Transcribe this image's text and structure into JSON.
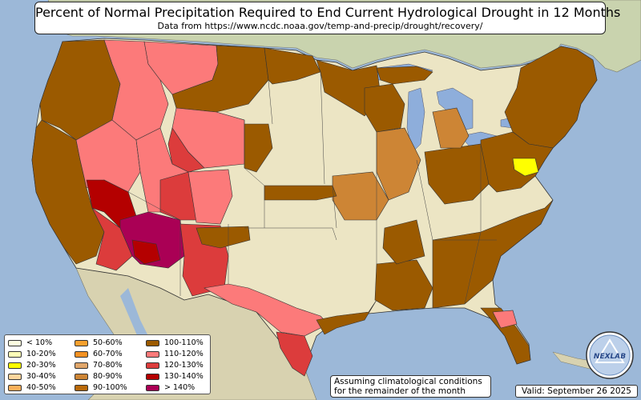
{
  "title": "Percent of Normal Precipitation Required to End Current Hydrological Drought in 12 Months",
  "subtitle": "Data from https://www.ncdc.noaa.gov/temp-and-precip/drought/recovery/",
  "note": "Assuming climatological conditions\nfor the remainder of the month",
  "valid": "Valid: September 26 2025",
  "logo_text": "NEXLAB",
  "colors": {
    "ocean": "#9cb8d8",
    "land": "#ece5c4",
    "mexico": "#d8d2b0",
    "canada": "#c9d3ae",
    "lakes": "#8eaedb"
  },
  "legend": [
    {
      "label": "< 10%",
      "color": "#fefee0"
    },
    {
      "label": "10-20%",
      "color": "#ffffb8"
    },
    {
      "label": "20-30%",
      "color": "#ffff00"
    },
    {
      "label": "30-40%",
      "color": "#fdd59c"
    },
    {
      "label": "40-50%",
      "color": "#fbb05a"
    },
    {
      "label": "50-60%",
      "color": "#f7a02e"
    },
    {
      "label": "60-70%",
      "color": "#f39122"
    },
    {
      "label": "70-80%",
      "color": "#e0a66a"
    },
    {
      "label": "80-90%",
      "color": "#cd8535"
    },
    {
      "label": "90-100%",
      "color": "#b8690a"
    },
    {
      "label": "100-110%",
      "color": "#9b5a00"
    },
    {
      "label": "110-120%",
      "color": "#fc7a7a"
    },
    {
      "label": "120-130%",
      "color": "#dc3c3c"
    },
    {
      "label": "130-140%",
      "color": "#b40000"
    },
    {
      "label": "> 140%",
      "color": "#aa0055"
    }
  ],
  "regions": [
    {
      "id": "pacific-northwest",
      "category": "100-110%"
    },
    {
      "id": "california",
      "category": "100-110%"
    },
    {
      "id": "idaho-montana-west",
      "category": "110-120%"
    },
    {
      "id": "montana-north",
      "category": "110-120%"
    },
    {
      "id": "montana-east",
      "category": "100-110%"
    },
    {
      "id": "north-dakota-north",
      "category": "100-110%"
    },
    {
      "id": "minnesota",
      "category": "100-110%"
    },
    {
      "id": "wyoming",
      "category": "110-120%"
    },
    {
      "id": "wyoming-west",
      "category": "120-130%"
    },
    {
      "id": "nevada-west",
      "category": "110-120%"
    },
    {
      "id": "southern-nevada",
      "category": "130-140%"
    },
    {
      "id": "arizona-west",
      "category": "120-130%"
    },
    {
      "id": "arizona-east",
      "category": "> 140%"
    },
    {
      "id": "arizona-south",
      "category": "130-140%"
    },
    {
      "id": "utah",
      "category": "110-120%"
    },
    {
      "id": "colorado-west",
      "category": "120-130%"
    },
    {
      "id": "colorado-east",
      "category": "110-120%"
    },
    {
      "id": "new-mexico",
      "category": "120-130%"
    },
    {
      "id": "west-texas",
      "category": "110-120%"
    },
    {
      "id": "texas-south",
      "category": "120-130%"
    },
    {
      "id": "texas-gulf",
      "category": "100-110%"
    },
    {
      "id": "louisiana-mississippi",
      "category": "100-110%"
    },
    {
      "id": "southeast",
      "category": "100-110%"
    },
    {
      "id": "florida",
      "category": "100-110%"
    },
    {
      "id": "florida-central",
      "category": "110-120%"
    },
    {
      "id": "northeast",
      "category": "100-110%"
    },
    {
      "id": "mid-atlantic",
      "category": "100-110%"
    },
    {
      "id": "maryland",
      "category": "20-30%"
    },
    {
      "id": "ohio-valley",
      "category": "100-110%"
    },
    {
      "id": "michigan",
      "category": "80-90%"
    },
    {
      "id": "michigan-north",
      "category": "100-110%"
    },
    {
      "id": "wisconsin",
      "category": "100-110%"
    },
    {
      "id": "illinois-iowa",
      "category": "80-90%"
    },
    {
      "id": "missouri",
      "category": "80-90%"
    },
    {
      "id": "kansas",
      "category": "100-110%"
    },
    {
      "id": "oklahoma-panhandle",
      "category": "100-110%"
    },
    {
      "id": "nebraska",
      "category": "100-110%"
    },
    {
      "id": "arkansas",
      "category": "100-110%"
    }
  ]
}
